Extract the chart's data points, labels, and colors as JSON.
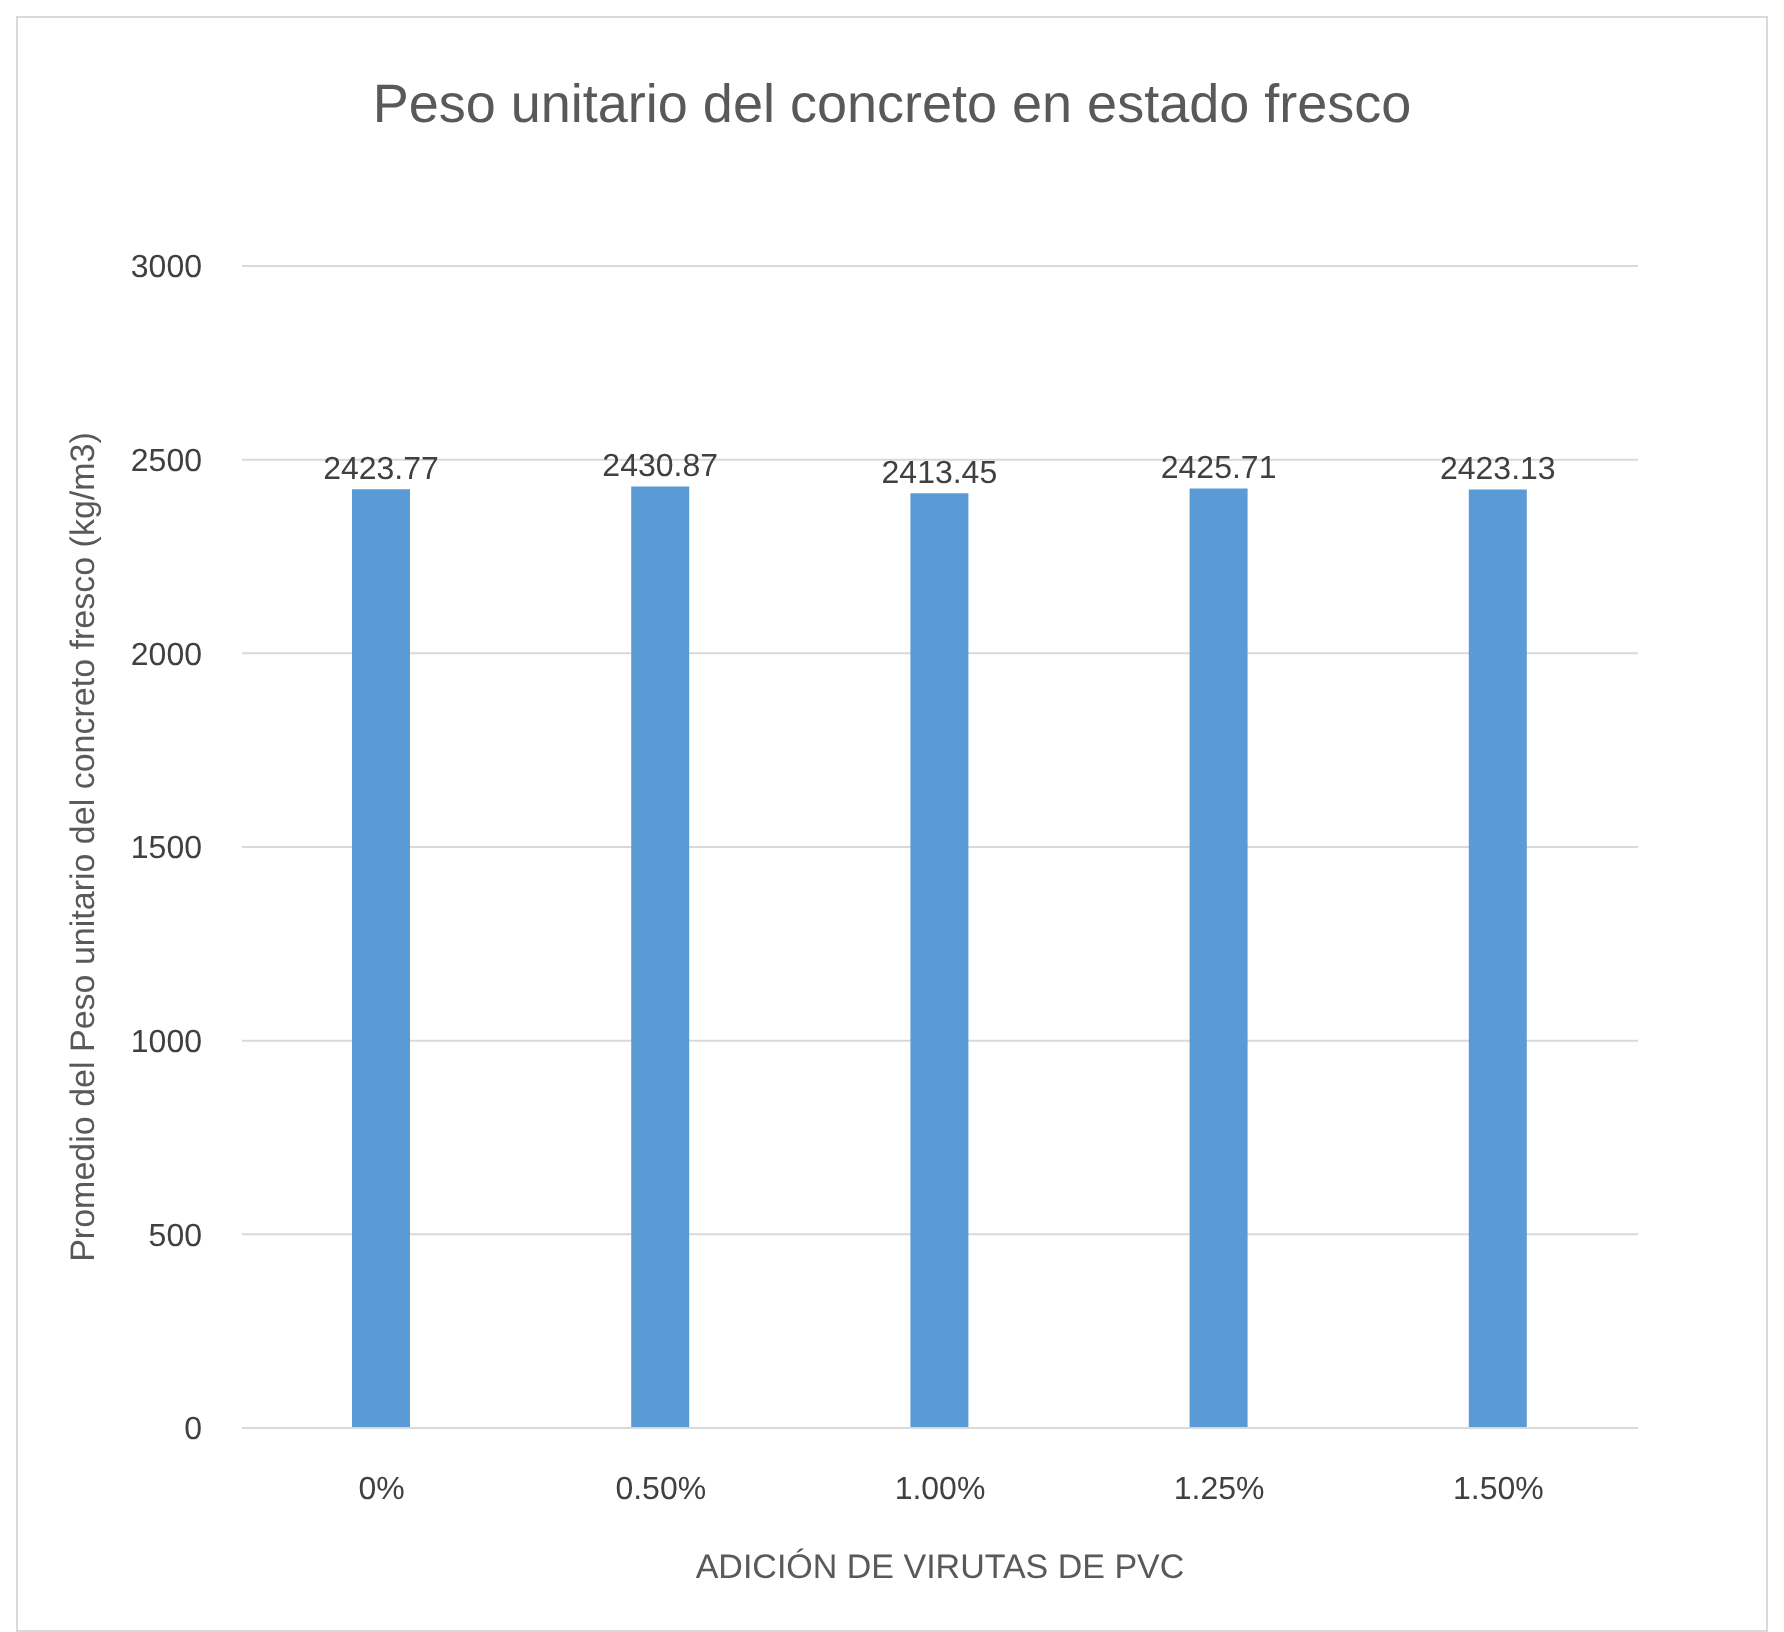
{
  "chart_data": {
    "type": "bar",
    "title": "Peso unitario del concreto en estado fresco",
    "xlabel": "ADICIÓN DE VIRUTAS DE PVC",
    "ylabel": "Promedio del Peso unitario del concreto fresco (kg/m3)",
    "categories": [
      "0%",
      "0.50%",
      "1.00%",
      "1.25%",
      "1.50%"
    ],
    "values": [
      2423.77,
      2430.87,
      2413.45,
      2425.71,
      2423.13
    ],
    "color": "#5b9bd5",
    "ylim": [
      0,
      3000
    ],
    "yticks": [
      0,
      500,
      1000,
      1500,
      2000,
      2500,
      3000
    ],
    "grid": "y",
    "data_labels": true
  }
}
